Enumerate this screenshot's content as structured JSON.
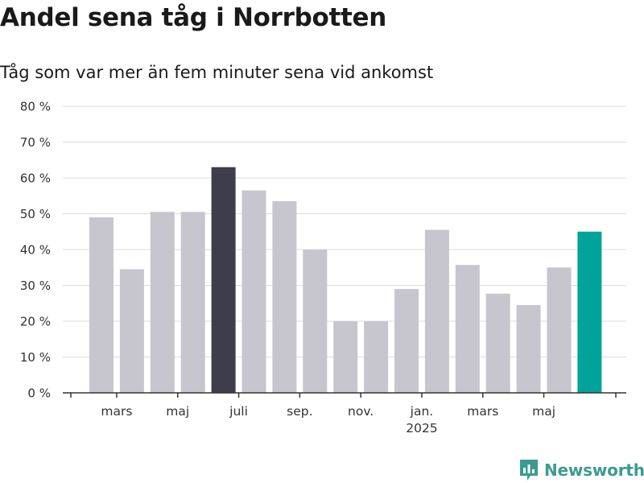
{
  "chart_data": {
    "type": "bar",
    "title": "Andel sena tåg i Norrbotten",
    "subtitle": "Tåg som var mer än fem minuter sena vid ankomst",
    "xlabel": "",
    "ylabel": "",
    "ylim": [
      0,
      80
    ],
    "yticks": [
      "0 %",
      "10 %",
      "20 %",
      "30 %",
      "40 %",
      "50 %",
      "60 %",
      "70 %",
      "80 %"
    ],
    "grid": true,
    "categories": [
      "2024-02",
      "2024-03",
      "2024-04",
      "2024-05",
      "2024-06",
      "2024-07",
      "2024-08",
      "2024-09",
      "2024-10",
      "2024-11",
      "2024-12",
      "2025-01",
      "2025-02",
      "2025-03",
      "2025-04",
      "2025-05",
      "2025-06"
    ],
    "values": [
      49,
      34.5,
      50.5,
      50.5,
      63,
      56.5,
      53.5,
      40,
      20,
      20,
      29,
      45.5,
      35.7,
      27.7,
      24.5,
      35,
      45
    ],
    "bar_colors": [
      "#c7c6ce",
      "#c7c6ce",
      "#c7c6ce",
      "#c7c6ce",
      "#3e3d4a",
      "#c7c6ce",
      "#c7c6ce",
      "#c7c6ce",
      "#c7c6ce",
      "#c7c6ce",
      "#c7c6ce",
      "#c7c6ce",
      "#c7c6ce",
      "#c7c6ce",
      "#c7c6ce",
      "#c7c6ce",
      "#00a39a"
    ],
    "xtick_labels": [
      {
        "at": 1,
        "label": "mars",
        "sub": ""
      },
      {
        "at": 3,
        "label": "maj",
        "sub": ""
      },
      {
        "at": 5,
        "label": "juli",
        "sub": ""
      },
      {
        "at": 7,
        "label": "sep.",
        "sub": ""
      },
      {
        "at": 9,
        "label": "nov.",
        "sub": ""
      },
      {
        "at": 11,
        "label": "jan.",
        "sub": "2025"
      },
      {
        "at": 13,
        "label": "mars",
        "sub": ""
      },
      {
        "at": 15,
        "label": "maj",
        "sub": ""
      }
    ]
  },
  "colors": {
    "bar_default": "#c7c6ce",
    "bar_highlight": "#3e3d4a",
    "bar_latest": "#00a39a",
    "brand": "#3c9a92"
  },
  "logo": {
    "text": "Newsworthy",
    "icon": "bar-chart-badge-icon"
  }
}
